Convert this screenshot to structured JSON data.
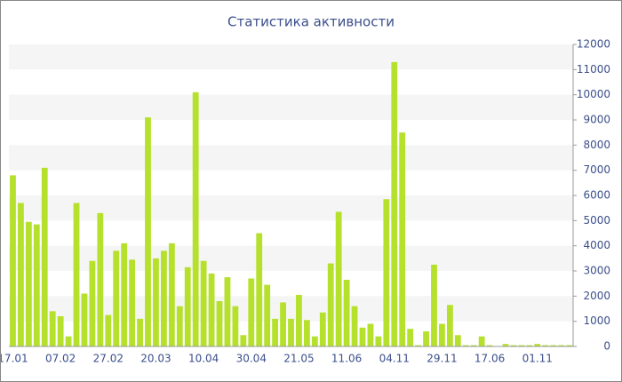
{
  "chart_data": {
    "type": "bar",
    "title": "Статистика активности",
    "categories": [
      "17.01",
      null,
      null,
      null,
      null,
      null,
      "07.02",
      null,
      null,
      null,
      null,
      null,
      "27.02",
      null,
      null,
      null,
      null,
      null,
      "20.03",
      null,
      null,
      null,
      null,
      null,
      "10.04",
      null,
      null,
      null,
      null,
      null,
      "30.04",
      null,
      null,
      null,
      null,
      null,
      "21.05",
      null,
      null,
      null,
      null,
      null,
      "11.06",
      null,
      null,
      null,
      null,
      null,
      "04.11",
      null,
      null,
      null,
      null,
      null,
      "29.11",
      null,
      null,
      null,
      null,
      null,
      "17.06",
      null,
      null,
      null,
      null,
      null,
      "01.11",
      null,
      null,
      null,
      null
    ],
    "values": [
      6800,
      5700,
      4950,
      4850,
      7100,
      1400,
      1200,
      400,
      5700,
      2100,
      3400,
      5300,
      1250,
      3800,
      4100,
      3450,
      1100,
      9100,
      3500,
      3800,
      4100,
      1600,
      3150,
      10100,
      3400,
      2900,
      1800,
      2750,
      1600,
      450,
      2700,
      4500,
      2450,
      1100,
      1750,
      1100,
      2050,
      1050,
      400,
      1350,
      3300,
      5350,
      2650,
      1600,
      750,
      900,
      400,
      5850,
      11300,
      8500,
      700,
      50,
      600,
      3250,
      900,
      1650,
      450,
      50,
      50,
      400,
      50,
      0,
      100,
      50,
      50,
      50,
      100,
      50,
      50,
      50,
      50
    ],
    "color": "#b5e02b",
    "ylim": [
      0,
      12000
    ],
    "yticks": [
      0,
      1000,
      2000,
      3000,
      4000,
      5000,
      6000,
      7000,
      8000,
      9000,
      10000,
      11000,
      12000
    ],
    "grid": "bands",
    "band_color": "#f5f5f5"
  }
}
